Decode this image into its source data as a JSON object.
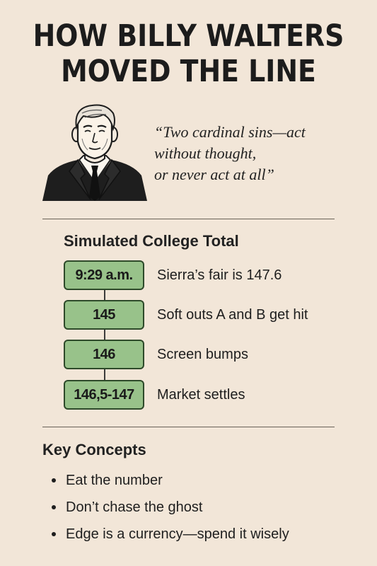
{
  "title": {
    "line1": "HOW BILLY WALTERS",
    "line2": "MOVED THE LINE"
  },
  "quote": {
    "line1": "“Two cardinal sins—act",
    "line2": "without thought,",
    "line3": "or never act at all”"
  },
  "timeline": {
    "heading": "Simulated College Total",
    "steps": [
      {
        "label": "9:29 a.m.",
        "text": "Sierra’s fair is 147.6"
      },
      {
        "label": "145",
        "text": "Soft outs A and B get hit"
      },
      {
        "label": "146",
        "text": "Screen bumps"
      },
      {
        "label": "146,5-147",
        "text": "Market settles"
      }
    ]
  },
  "concepts": {
    "heading": "Key Concepts",
    "items": [
      "Eat the number",
      "Don’t chase the ghost",
      "Edge is a currency—spend it wisely"
    ]
  },
  "colors": {
    "background": "#f2e6d8",
    "pill": "#98c28a",
    "pill_border": "#2e4a2a"
  }
}
